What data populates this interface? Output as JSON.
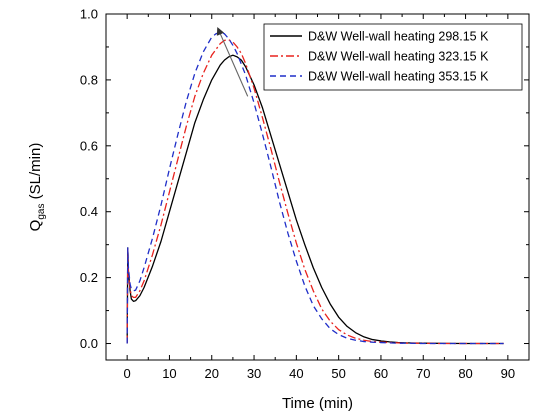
{
  "chart_data": {
    "type": "line",
    "xlabel": "Time (min)",
    "ylabel": {
      "main": "Q",
      "subscript": "gas",
      "unit": " (SL/min)"
    },
    "xlim": [
      -5,
      95
    ],
    "ylim": [
      -0.05,
      1.0
    ],
    "xticks": [
      0,
      10,
      20,
      30,
      40,
      50,
      60,
      70,
      80,
      90
    ],
    "yticks": [
      0.0,
      0.2,
      0.4,
      0.6,
      0.8,
      1.0
    ],
    "xtick_labels": [
      "0",
      "10",
      "20",
      "30",
      "40",
      "50",
      "60",
      "70",
      "80",
      "90"
    ],
    "ytick_labels": [
      "0.0",
      "0.2",
      "0.4",
      "0.6",
      "0.8",
      "1.0"
    ],
    "grid": false,
    "legend_position": "top-right",
    "series": [
      {
        "name": "D&W Well-wall heating 298.15 K",
        "color": "#000000",
        "dash": "solid",
        "x": [
          0,
          0.15,
          0.3,
          0.7,
          1,
          1.5,
          2,
          3,
          4,
          6,
          8,
          10,
          12,
          14,
          16,
          18,
          20,
          22,
          23,
          24,
          25,
          26,
          27,
          28,
          30,
          32,
          34,
          36,
          38,
          40,
          42,
          44,
          46,
          48,
          50,
          52,
          54,
          56,
          58,
          60,
          62,
          64,
          66,
          68,
          70,
          75,
          80,
          85,
          89
        ],
        "y": [
          0.0,
          0.29,
          0.22,
          0.16,
          0.135,
          0.128,
          0.13,
          0.145,
          0.17,
          0.235,
          0.31,
          0.4,
          0.49,
          0.58,
          0.67,
          0.74,
          0.8,
          0.845,
          0.86,
          0.87,
          0.875,
          0.87,
          0.86,
          0.84,
          0.785,
          0.715,
          0.63,
          0.545,
          0.46,
          0.375,
          0.3,
          0.23,
          0.17,
          0.12,
          0.08,
          0.052,
          0.033,
          0.02,
          0.012,
          0.008,
          0.005,
          0.003,
          0.002,
          0.0015,
          0.001,
          0.0005,
          0.0,
          0.0,
          0.0
        ]
      },
      {
        "name": "D&W Well-wall heating 323.15 K",
        "color": "#e8231e",
        "dash": "dashdot",
        "x": [
          0,
          0.15,
          0.3,
          0.7,
          1,
          1.5,
          2,
          3,
          4,
          6,
          8,
          10,
          12,
          14,
          16,
          18,
          20,
          22,
          23,
          24,
          25,
          26,
          27,
          28,
          30,
          32,
          34,
          36,
          38,
          40,
          42,
          44,
          46,
          48,
          50,
          52,
          54,
          56,
          58,
          60,
          62,
          64,
          66,
          68,
          70,
          75,
          80,
          85,
          89
        ],
        "y": [
          0.0,
          0.29,
          0.22,
          0.165,
          0.145,
          0.14,
          0.14,
          0.16,
          0.19,
          0.27,
          0.36,
          0.46,
          0.56,
          0.66,
          0.75,
          0.82,
          0.875,
          0.91,
          0.92,
          0.922,
          0.915,
          0.9,
          0.88,
          0.85,
          0.775,
          0.685,
          0.59,
          0.49,
          0.395,
          0.305,
          0.225,
          0.16,
          0.105,
          0.068,
          0.042,
          0.026,
          0.016,
          0.01,
          0.006,
          0.004,
          0.003,
          0.002,
          0.001,
          0.001,
          0.0005,
          0.0,
          0.0,
          0.0,
          0.0
        ]
      },
      {
        "name": "D&W Well-wall heating 353.15 K",
        "color": "#1f2ec8",
        "dash": "dashed",
        "x": [
          0,
          0.15,
          0.3,
          0.7,
          1,
          1.5,
          2,
          3,
          4,
          6,
          8,
          10,
          12,
          14,
          16,
          18,
          20,
          21,
          22,
          23,
          24,
          25,
          26,
          28,
          30,
          32,
          34,
          36,
          38,
          40,
          42,
          44,
          46,
          48,
          50,
          52,
          54,
          56,
          58,
          60,
          62,
          64,
          66,
          68,
          70,
          75,
          80,
          85,
          89
        ],
        "y": [
          0.0,
          0.29,
          0.23,
          0.18,
          0.165,
          0.16,
          0.162,
          0.19,
          0.23,
          0.32,
          0.42,
          0.53,
          0.635,
          0.735,
          0.82,
          0.885,
          0.93,
          0.94,
          0.945,
          0.94,
          0.925,
          0.905,
          0.88,
          0.815,
          0.73,
          0.635,
          0.535,
          0.43,
          0.335,
          0.25,
          0.175,
          0.115,
          0.075,
          0.045,
          0.027,
          0.016,
          0.01,
          0.006,
          0.004,
          0.003,
          0.002,
          0.001,
          0.001,
          0.0005,
          0.0,
          0.0,
          0.0,
          0.0,
          0.0
        ]
      }
    ],
    "annotation": {
      "type": "arrow",
      "from": [
        28.5,
        0.75
      ],
      "to": [
        21.5,
        0.955
      ],
      "color": "#666666"
    }
  }
}
